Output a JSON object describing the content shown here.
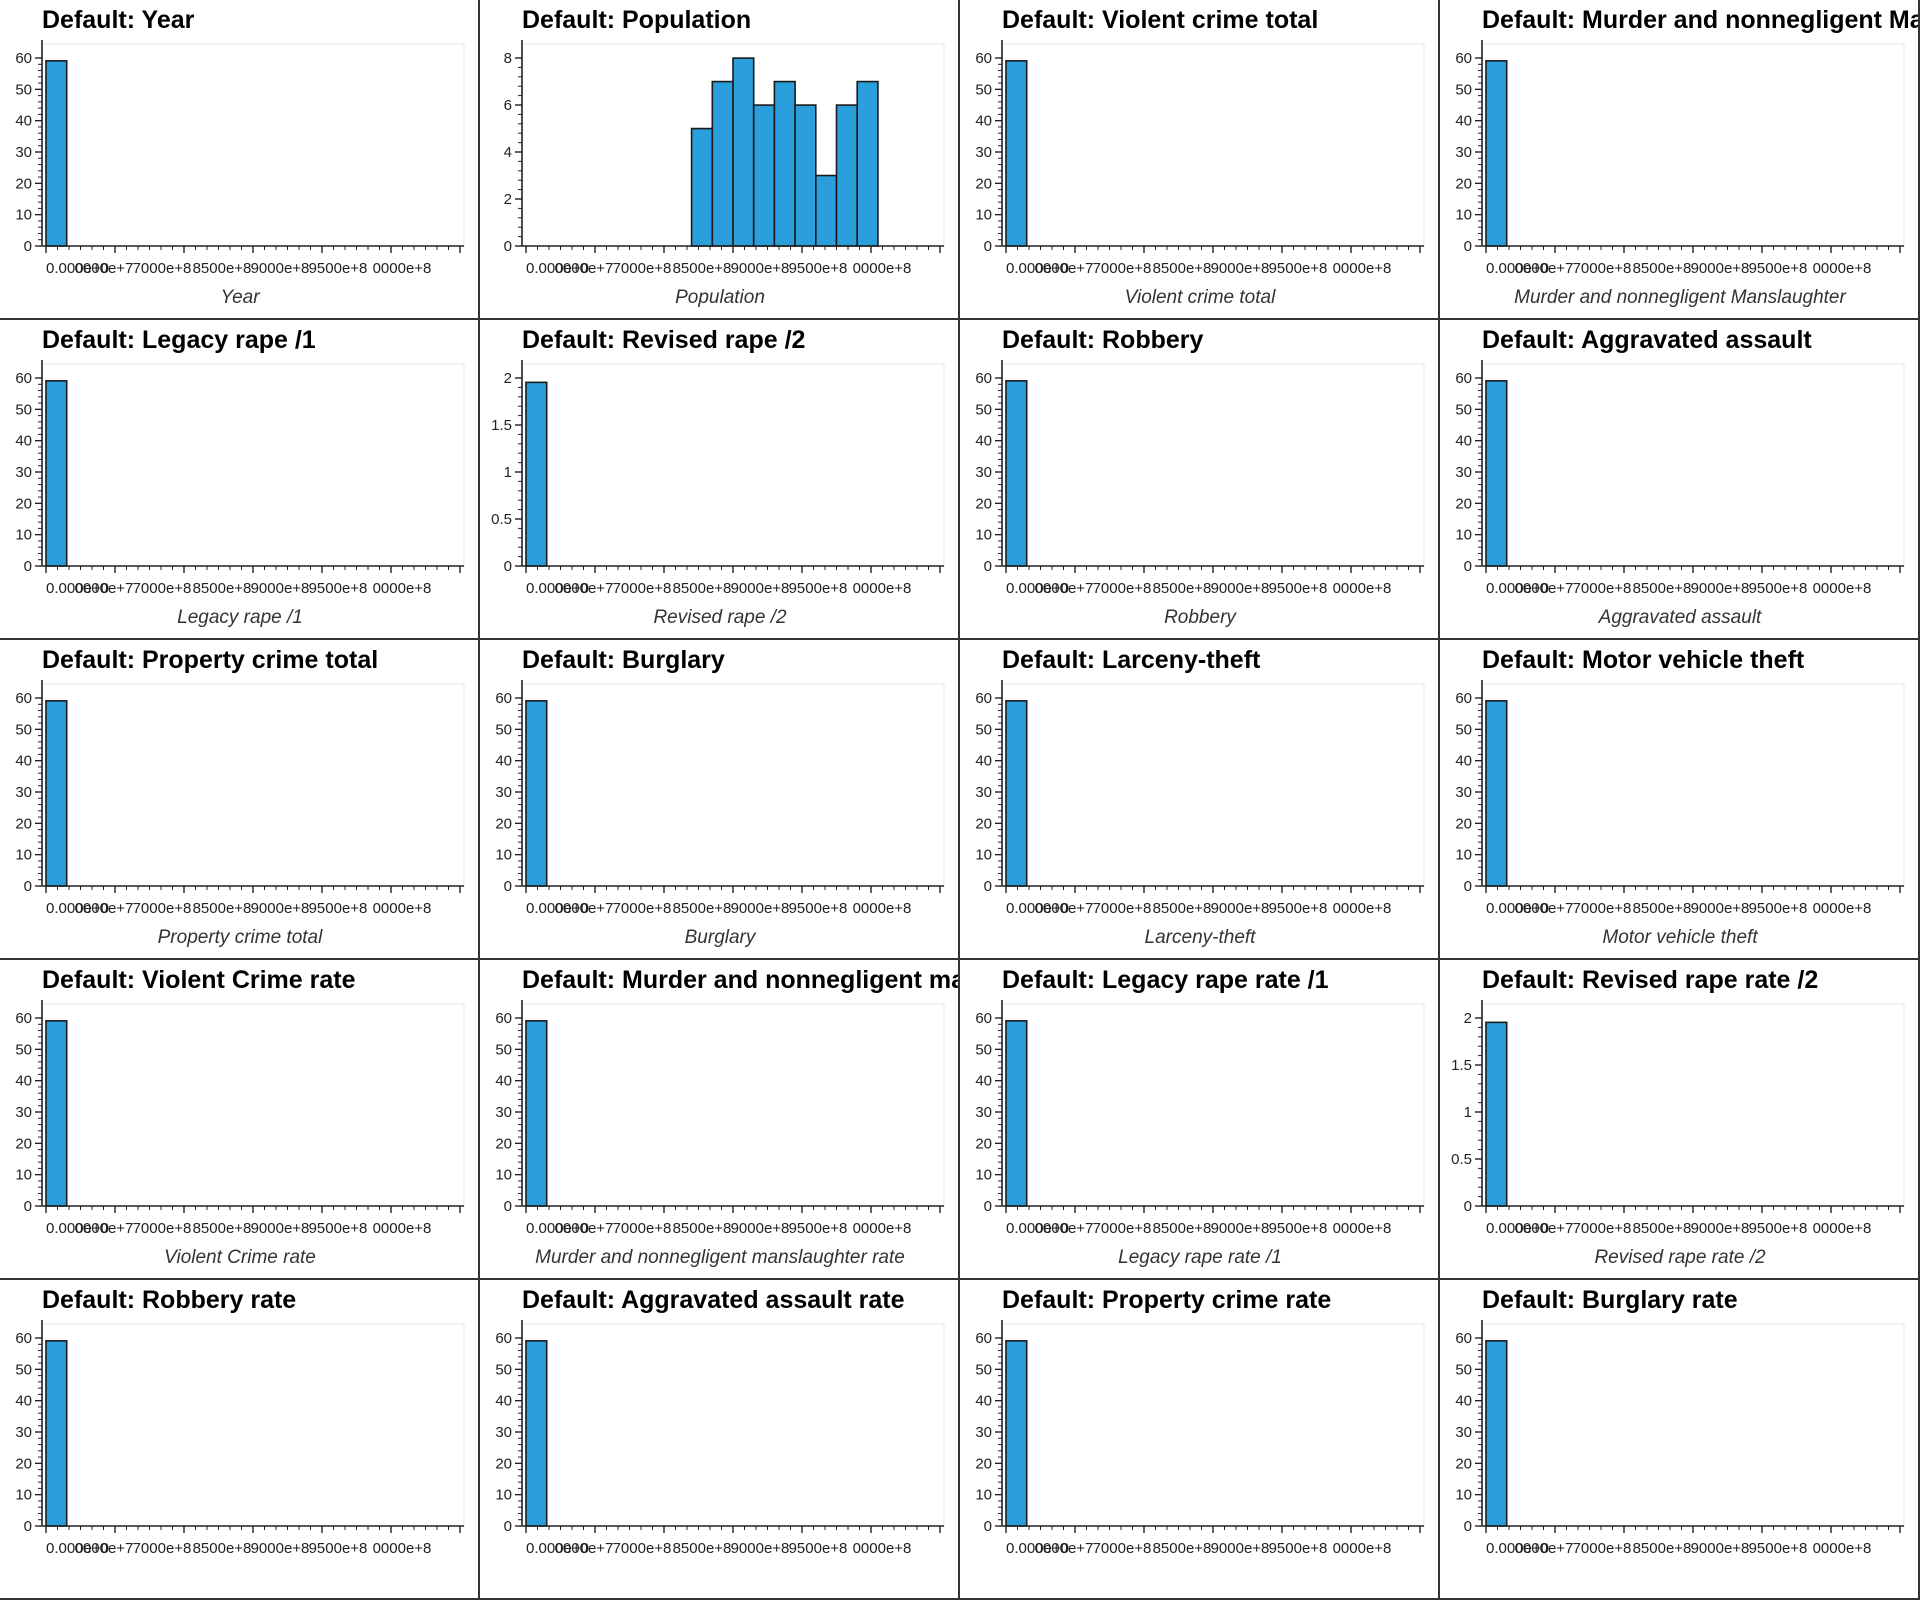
{
  "title_prefix": "Default: ",
  "chart_data": [
    {
      "type": "bar",
      "title": "Default: Year",
      "xlabel": "Year",
      "ylim": [
        0,
        60
      ],
      "yticks": [
        "0",
        "10",
        "20",
        "30",
        "40",
        "50",
        "60"
      ],
      "xticks": [
        "0.000e+0",
        "0000e+7",
        "7000e+8",
        "8500e+8",
        "9000e+8",
        "9500e+8",
        "0000e+8"
      ],
      "bars": [
        {
          "bin": 0,
          "value": 55
        }
      ]
    },
    {
      "type": "bar",
      "title": "Default: Population",
      "xlabel": "Population",
      "ylim": [
        0,
        8.6
      ],
      "yticks": [
        "0",
        "2",
        "4",
        "6",
        "8"
      ],
      "xticks": [
        "0.000e+0",
        "0000e+7",
        "7000e+8",
        "8500e+8",
        "9000e+8",
        "9500e+8",
        "0000e+8"
      ],
      "bars": [
        {
          "bin": 8,
          "value": 5
        },
        {
          "bin": 9,
          "value": 7
        },
        {
          "bin": 10,
          "value": 8
        },
        {
          "bin": 11,
          "value": 6
        },
        {
          "bin": 12,
          "value": 7
        },
        {
          "bin": 13,
          "value": 6
        },
        {
          "bin": 14,
          "value": 3
        },
        {
          "bin": 15,
          "value": 6
        },
        {
          "bin": 16,
          "value": 7
        }
      ]
    },
    {
      "type": "bar",
      "title": "Default: Violent crime total",
      "xlabel": "Violent crime total",
      "ylim": [
        0,
        60
      ],
      "yticks": [
        "0",
        "10",
        "20",
        "30",
        "40",
        "50",
        "60"
      ],
      "xticks": [
        "0.000e+0",
        "0000e+7",
        "7000e+8",
        "8500e+8",
        "9000e+8",
        "9500e+8",
        "0000e+8"
      ],
      "bars": [
        {
          "bin": 0,
          "value": 55
        }
      ]
    },
    {
      "type": "bar",
      "title": "Default: Murder and nonnegligent Manslaughter",
      "xlabel": "Murder and nonnegligent Manslaughter",
      "ylim": [
        0,
        60
      ],
      "yticks": [
        "0",
        "10",
        "20",
        "30",
        "40",
        "50",
        "60"
      ],
      "xticks": [
        "0.000e+0",
        "0000e+7",
        "7000e+8",
        "8500e+8",
        "9000e+8",
        "9500e+8",
        "0000e+8"
      ],
      "bars": [
        {
          "bin": 0,
          "value": 55
        }
      ]
    },
    {
      "type": "bar",
      "title": "Default: Legacy rape /1",
      "xlabel": "Legacy rape /1",
      "ylim": [
        0,
        60
      ],
      "yticks": [
        "0",
        "10",
        "20",
        "30",
        "40",
        "50",
        "60"
      ],
      "xticks": [
        "0.000e+0",
        "0000e+7",
        "7000e+8",
        "8500e+8",
        "9000e+8",
        "9500e+8",
        "0000e+8"
      ],
      "bars": [
        {
          "bin": 0,
          "value": 55
        }
      ]
    },
    {
      "type": "bar",
      "title": "Default: Revised rape /2",
      "xlabel": "Revised rape /2",
      "ylim": [
        0,
        2.2
      ],
      "yticks": [
        "0",
        "0.5",
        "1",
        "1.5",
        "2"
      ],
      "xticks": [
        "0.000e+0",
        "0000e+7",
        "7000e+8",
        "8500e+8",
        "9000e+8",
        "9500e+8",
        "0000e+8"
      ],
      "bars": [
        {
          "bin": 0,
          "value": 2
        }
      ]
    },
    {
      "type": "bar",
      "title": "Default: Robbery",
      "xlabel": "Robbery",
      "ylim": [
        0,
        60
      ],
      "yticks": [
        "0",
        "10",
        "20",
        "30",
        "40",
        "50",
        "60"
      ],
      "xticks": [
        "0.000e+0",
        "0000e+7",
        "7000e+8",
        "8500e+8",
        "9000e+8",
        "9500e+8",
        "0000e+8"
      ],
      "bars": [
        {
          "bin": 0,
          "value": 55
        }
      ]
    },
    {
      "type": "bar",
      "title": "Default: Aggravated assault",
      "xlabel": "Aggravated assault",
      "ylim": [
        0,
        60
      ],
      "yticks": [
        "0",
        "10",
        "20",
        "30",
        "40",
        "50",
        "60"
      ],
      "xticks": [
        "0.000e+0",
        "0000e+7",
        "7000e+8",
        "8500e+8",
        "9000e+8",
        "9500e+8",
        "0000e+8"
      ],
      "bars": [
        {
          "bin": 0,
          "value": 55
        }
      ]
    },
    {
      "type": "bar",
      "title": "Default: Property crime total",
      "xlabel": "Property crime total",
      "ylim": [
        0,
        60
      ],
      "yticks": [
        "0",
        "10",
        "20",
        "30",
        "40",
        "50",
        "60"
      ],
      "xticks": [
        "0.000e+0",
        "0000e+7",
        "7000e+8",
        "8500e+8",
        "9000e+8",
        "9500e+8",
        "0000e+8"
      ],
      "bars": [
        {
          "bin": 0,
          "value": 55
        }
      ]
    },
    {
      "type": "bar",
      "title": "Default: Burglary",
      "xlabel": "Burglary",
      "ylim": [
        0,
        60
      ],
      "yticks": [
        "0",
        "10",
        "20",
        "30",
        "40",
        "50",
        "60"
      ],
      "xticks": [
        "0.000e+0",
        "0000e+7",
        "7000e+8",
        "8500e+8",
        "9000e+8",
        "9500e+8",
        "0000e+8"
      ],
      "bars": [
        {
          "bin": 0,
          "value": 55
        }
      ]
    },
    {
      "type": "bar",
      "title": "Default: Larceny-theft",
      "xlabel": "Larceny-theft",
      "ylim": [
        0,
        60
      ],
      "yticks": [
        "0",
        "10",
        "20",
        "30",
        "40",
        "50",
        "60"
      ],
      "xticks": [
        "0.000e+0",
        "0000e+7",
        "7000e+8",
        "8500e+8",
        "9000e+8",
        "9500e+8",
        "0000e+8"
      ],
      "bars": [
        {
          "bin": 0,
          "value": 55
        }
      ]
    },
    {
      "type": "bar",
      "title": "Default: Motor vehicle theft",
      "xlabel": "Motor vehicle theft",
      "ylim": [
        0,
        60
      ],
      "yticks": [
        "0",
        "10",
        "20",
        "30",
        "40",
        "50",
        "60"
      ],
      "xticks": [
        "0.000e+0",
        "0000e+7",
        "7000e+8",
        "8500e+8",
        "9000e+8",
        "9500e+8",
        "0000e+8"
      ],
      "bars": [
        {
          "bin": 0,
          "value": 55
        }
      ]
    },
    {
      "type": "bar",
      "title": "Default: Violent Crime rate",
      "xlabel": "Violent Crime rate",
      "ylim": [
        0,
        60
      ],
      "yticks": [
        "0",
        "10",
        "20",
        "30",
        "40",
        "50",
        "60"
      ],
      "xticks": [
        "0.000e+0",
        "0000e+7",
        "7000e+8",
        "8500e+8",
        "9000e+8",
        "9500e+8",
        "0000e+8"
      ],
      "bars": [
        {
          "bin": 0,
          "value": 55
        }
      ]
    },
    {
      "type": "bar",
      "title": "Default: Murder and nonnegligent manslaughter rate",
      "xlabel": "Murder and nonnegligent manslaughter rate",
      "ylim": [
        0,
        60
      ],
      "yticks": [
        "0",
        "10",
        "20",
        "30",
        "40",
        "50",
        "60"
      ],
      "xticks": [
        "0.000e+0",
        "0000e+7",
        "7000e+8",
        "8500e+8",
        "9000e+8",
        "9500e+8",
        "0000e+8"
      ],
      "bars": [
        {
          "bin": 0,
          "value": 55
        }
      ]
    },
    {
      "type": "bar",
      "title": "Default: Legacy rape rate /1",
      "xlabel": "Legacy rape rate /1",
      "ylim": [
        0,
        60
      ],
      "yticks": [
        "0",
        "10",
        "20",
        "30",
        "40",
        "50",
        "60"
      ],
      "xticks": [
        "0.000e+0",
        "0000e+7",
        "7000e+8",
        "8500e+8",
        "9000e+8",
        "9500e+8",
        "0000e+8"
      ],
      "bars": [
        {
          "bin": 0,
          "value": 55
        }
      ]
    },
    {
      "type": "bar",
      "title": "Default: Revised rape rate /2",
      "xlabel": "Revised rape rate /2",
      "ylim": [
        0,
        2.2
      ],
      "yticks": [
        "0",
        "0.5",
        "1",
        "1.5",
        "2"
      ],
      "xticks": [
        "0.000e+0",
        "0000e+7",
        "7000e+8",
        "8500e+8",
        "9000e+8",
        "9500e+8",
        "0000e+8"
      ],
      "bars": [
        {
          "bin": 0,
          "value": 2
        }
      ]
    },
    {
      "type": "bar",
      "title": "Default: Robbery rate",
      "xlabel": "",
      "ylim": [
        0,
        60
      ],
      "yticks": [
        "0",
        "10",
        "20",
        "30",
        "40",
        "50",
        "60"
      ],
      "xticks": [
        "0.000e+0",
        "0000e+7",
        "7000e+8",
        "8500e+8",
        "9000e+8",
        "9500e+8",
        "0000e+8"
      ],
      "bars": [
        {
          "bin": 0,
          "value": 55
        }
      ]
    },
    {
      "type": "bar",
      "title": "Default: Aggravated assault rate",
      "xlabel": "",
      "ylim": [
        0,
        60
      ],
      "yticks": [
        "0",
        "10",
        "20",
        "30",
        "40",
        "50",
        "60"
      ],
      "xticks": [
        "0.000e+0",
        "0000e+7",
        "7000e+8",
        "8500e+8",
        "9000e+8",
        "9500e+8",
        "0000e+8"
      ],
      "bars": [
        {
          "bin": 0,
          "value": 55
        }
      ]
    },
    {
      "type": "bar",
      "title": "Default: Property crime rate",
      "xlabel": "",
      "ylim": [
        0,
        60
      ],
      "yticks": [
        "0",
        "10",
        "20",
        "30",
        "40",
        "50",
        "60"
      ],
      "xticks": [
        "0.000e+0",
        "0000e+7",
        "7000e+8",
        "8500e+8",
        "9000e+8",
        "9500e+8",
        "0000e+8"
      ],
      "bars": [
        {
          "bin": 0,
          "value": 55
        }
      ]
    },
    {
      "type": "bar",
      "title": "Default: Burglary rate",
      "xlabel": "",
      "ylim": [
        0,
        60
      ],
      "yticks": [
        "0",
        "10",
        "20",
        "30",
        "40",
        "50",
        "60"
      ],
      "xticks": [
        "0.000e+0",
        "0000e+7",
        "7000e+8",
        "8500e+8",
        "9000e+8",
        "9500e+8",
        "0000e+8"
      ],
      "bars": [
        {
          "bin": 0,
          "value": 55
        }
      ]
    }
  ],
  "colors": {
    "bar_fill": "#2b9fdc",
    "bar_stroke": "#1a1a1a",
    "axis": "#222222",
    "frame": "#e6e6e6"
  }
}
